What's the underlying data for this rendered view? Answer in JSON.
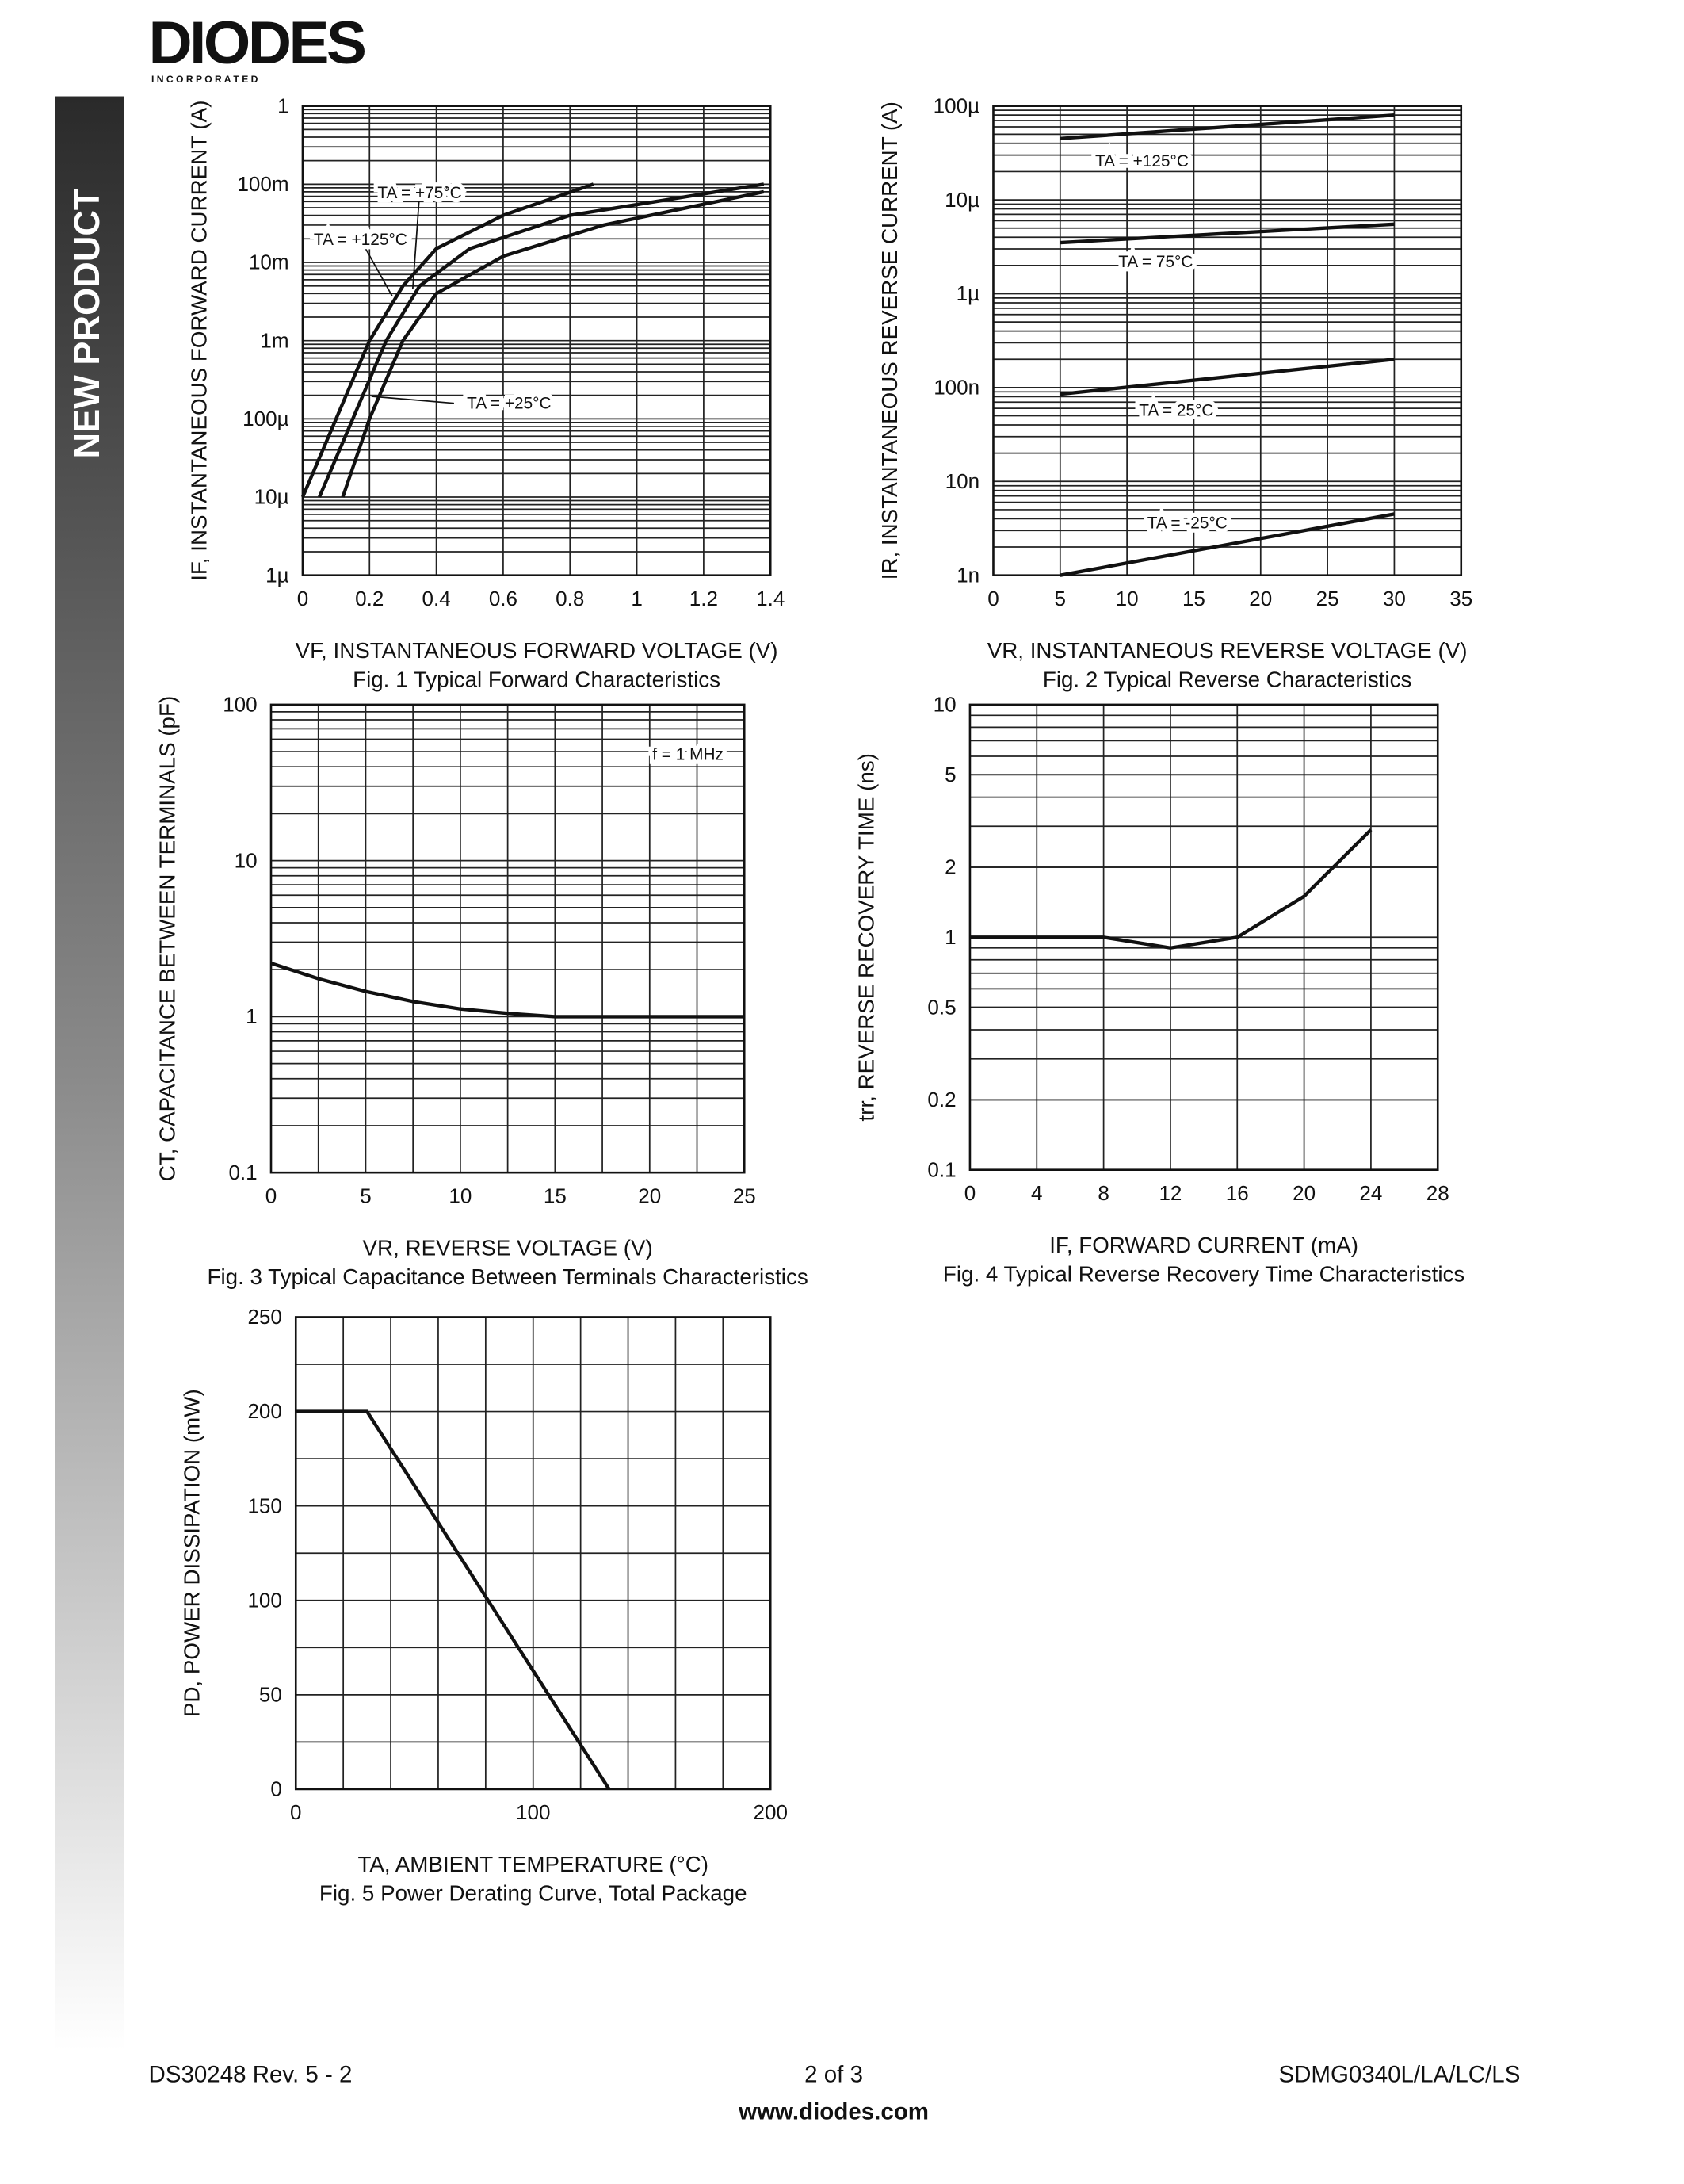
{
  "header": {
    "logo": "DIODES",
    "tagline": "I N C O R P O R A T E D"
  },
  "sidebar": {
    "label": "NEW PRODUCT"
  },
  "chart_data": [
    {
      "type": "line",
      "title": "Fig. 1  Typical Forward Characteristics",
      "x_label": "VF, INSTANTANEOUS FORWARD VOLTAGE (V)",
      "y_label": "IF, INSTANTANEOUS FORWARD CURRENT (A)",
      "xlim": [
        0,
        1.4
      ],
      "xticks": [
        0,
        0.2,
        0.4,
        0.6,
        0.8,
        1.0,
        1.2,
        1.4
      ],
      "ylim": [
        1e-06,
        1
      ],
      "ylog": true,
      "yticks": [
        {
          "value": 1e-06,
          "label": "1µ"
        },
        {
          "value": 1e-05,
          "label": "10µ"
        },
        {
          "value": 0.0001,
          "label": "100µ"
        },
        {
          "value": 0.001,
          "label": "1m"
        },
        {
          "value": 0.01,
          "label": "10m"
        },
        {
          "value": 0.1,
          "label": "100m"
        },
        1
      ],
      "series": [
        {
          "name": "TA = +75°C",
          "color": "#111111",
          "x": [
            0.05,
            0.15,
            0.25,
            0.35,
            0.5,
            0.8,
            1.38
          ],
          "values": [
            1e-05,
            0.0001,
            0.001,
            0.005,
            0.015,
            0.04,
            0.1
          ]
        },
        {
          "name": "TA = +125°C",
          "color": "#111111",
          "x": [
            0,
            0.1,
            0.2,
            0.3,
            0.4,
            0.6,
            0.87
          ],
          "values": [
            1e-05,
            0.0001,
            0.001,
            0.005,
            0.015,
            0.04,
            0.1
          ]
        },
        {
          "name": "TA = +25°C",
          "color": "#111111",
          "x": [
            0.12,
            0.2,
            0.3,
            0.4,
            0.6,
            0.9,
            1.38
          ],
          "values": [
            1e-05,
            0.0001,
            0.001,
            0.004,
            0.012,
            0.03,
            0.08
          ]
        }
      ]
    },
    {
      "type": "line",
      "title": "Fig. 2  Typical Reverse Characteristics",
      "x_label": "VR, INSTANTANEOUS REVERSE VOLTAGE (V)",
      "y_label": "IR, INSTANTANEOUS REVERSE CURRENT (A)",
      "xlim": [
        0,
        35
      ],
      "xticks": [
        0,
        5,
        10,
        15,
        20,
        25,
        30,
        35
      ],
      "ylim": [
        1e-09,
        0.0001
      ],
      "ylog": true,
      "yticks": [
        {
          "value": 1e-09,
          "label": "1n"
        },
        {
          "value": 1e-08,
          "label": "10n"
        },
        {
          "value": 1e-07,
          "label": "100n"
        },
        {
          "value": 1e-06,
          "label": "1µ"
        },
        {
          "value": 1e-05,
          "label": "10µ"
        },
        {
          "value": 0.0001,
          "label": "100µ"
        }
      ],
      "series": [
        {
          "name": "TA = +125°C",
          "color": "#111111",
          "x": [
            5,
            30
          ],
          "values": [
            4.5e-05,
            8e-05
          ]
        },
        {
          "name": "TA = 75°C",
          "color": "#111111",
          "x": [
            5,
            30
          ],
          "values": [
            3.5e-06,
            5.5e-06
          ]
        },
        {
          "name": "TA = 25°C",
          "color": "#111111",
          "x": [
            5,
            30
          ],
          "values": [
            8.5e-08,
            2e-07
          ]
        },
        {
          "name": "TA = -25°C",
          "color": "#111111",
          "x": [
            5,
            30
          ],
          "values": [
            1e-09,
            4.5e-09
          ]
        }
      ]
    },
    {
      "type": "line",
      "title": "Fig. 3  Typical Capacitance Between Terminals Characteristics",
      "x_label": "VR, REVERSE VOLTAGE (V)",
      "y_label": "CT, CAPACITANCE BETWEEN TERMINALS (pF)",
      "annotations": [
        "f = 1 MHz"
      ],
      "xlim": [
        0,
        25
      ],
      "xticks": [
        0,
        5,
        10,
        15,
        20,
        25
      ],
      "ylim": [
        0.1,
        100
      ],
      "ylog": true,
      "yticks": [
        0.1,
        1,
        10,
        100
      ],
      "series": [
        {
          "color": "#111111",
          "x": [
            0,
            2.5,
            5,
            7.5,
            10,
            12.5,
            15,
            20,
            25
          ],
          "values": [
            2.2,
            1.75,
            1.45,
            1.25,
            1.12,
            1.05,
            1.0,
            1.0,
            1.0
          ]
        }
      ]
    },
    {
      "type": "line",
      "title": "Fig. 4  Typical Reverse Recovery Time Characteristics",
      "x_label": "IF, FORWARD CURRENT (mA)",
      "y_label": "trr, REVERSE RECOVERY TIME (ns)",
      "xlim": [
        0,
        28
      ],
      "xticks": [
        0,
        4,
        8,
        12,
        16,
        20,
        24,
        28
      ],
      "ylim": [
        0.1,
        10
      ],
      "ylog": true,
      "yticks": [
        0.1,
        0.2,
        0.5,
        1,
        2,
        5,
        10
      ],
      "series": [
        {
          "color": "#111111",
          "x": [
            0,
            4,
            8,
            12,
            16,
            20,
            24
          ],
          "values": [
            1.0,
            1.0,
            1.0,
            0.9,
            1.0,
            1.5,
            2.9
          ]
        }
      ]
    },
    {
      "type": "line",
      "title": "Fig. 5  Power Derating Curve, Total Package",
      "x_label": "TA, AMBIENT TEMPERATURE (°C)",
      "y_label": "PD, POWER DISSIPATION (mW)",
      "xlim": [
        0,
        200
      ],
      "xticks": [
        0,
        100,
        200
      ],
      "ylim": [
        0,
        250
      ],
      "yticks": [
        0,
        50,
        100,
        150,
        200,
        250
      ],
      "series": [
        {
          "color": "#111111",
          "x": [
            0,
            30,
            132
          ],
          "values": [
            200,
            200,
            0
          ]
        }
      ]
    }
  ],
  "footer": {
    "doc": "DS30248 Rev. 5 - 2",
    "page": "2 of 3",
    "part": "SDMG0340L/LA/LC/LS",
    "url": "www.diodes.com"
  }
}
